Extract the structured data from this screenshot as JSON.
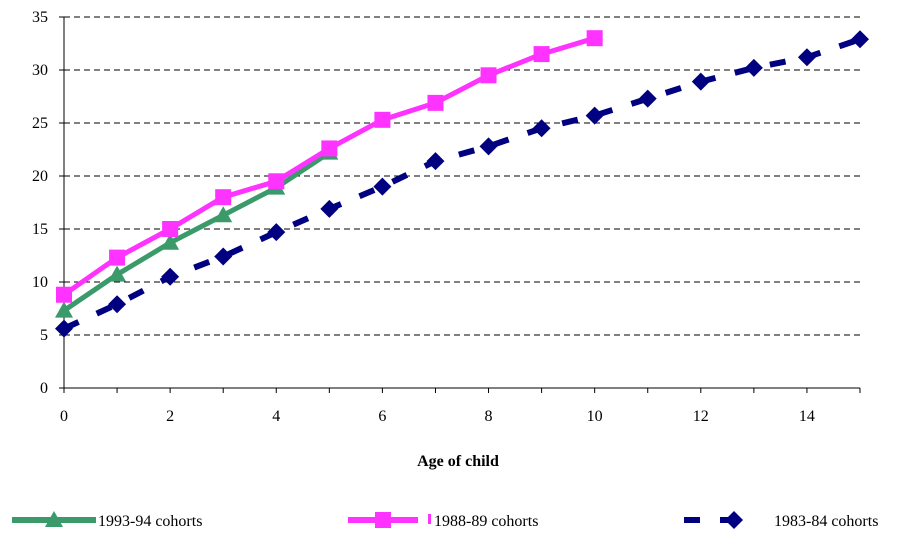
{
  "chart_data": {
    "type": "line",
    "title": "",
    "xlabel": "Age of child",
    "ylabel": "",
    "xlim": [
      0,
      15
    ],
    "ylim": [
      0,
      35
    ],
    "x_ticks": [
      0,
      2,
      4,
      6,
      8,
      10,
      12,
      14
    ],
    "y_ticks": [
      0,
      5,
      10,
      15,
      20,
      25,
      30,
      35
    ],
    "grid": "horizontal-dashed",
    "legend": "bottom",
    "series": [
      {
        "name": "1993-94 cohorts",
        "color": "#3a9a6a",
        "marker": "triangle",
        "line": "solid",
        "x": [
          0,
          1,
          2,
          3,
          4,
          5
        ],
        "values": [
          7.3,
          10.7,
          13.7,
          16.3,
          18.9,
          22.2
        ]
      },
      {
        "name": "1988-89 cohorts",
        "color": "#ff33ff",
        "marker": "square",
        "line": "dashed",
        "x": [
          0,
          1,
          2,
          3,
          4,
          5,
          6,
          7,
          8,
          9,
          10
        ],
        "values": [
          8.8,
          12.3,
          15.0,
          18.0,
          19.5,
          22.6,
          25.3,
          26.9,
          29.5,
          31.5,
          33.0
        ]
      },
      {
        "name": "1983-84 cohorts",
        "color": "#000080",
        "marker": "diamond",
        "line": "dashed",
        "x": [
          0,
          1,
          2,
          3,
          4,
          5,
          6,
          7,
          8,
          9,
          10,
          11,
          12,
          13,
          14,
          15
        ],
        "values": [
          5.6,
          7.9,
          10.5,
          12.4,
          14.7,
          16.9,
          19.0,
          21.4,
          22.8,
          24.5,
          25.7,
          27.3,
          28.9,
          30.2,
          31.2,
          32.9
        ]
      }
    ]
  }
}
